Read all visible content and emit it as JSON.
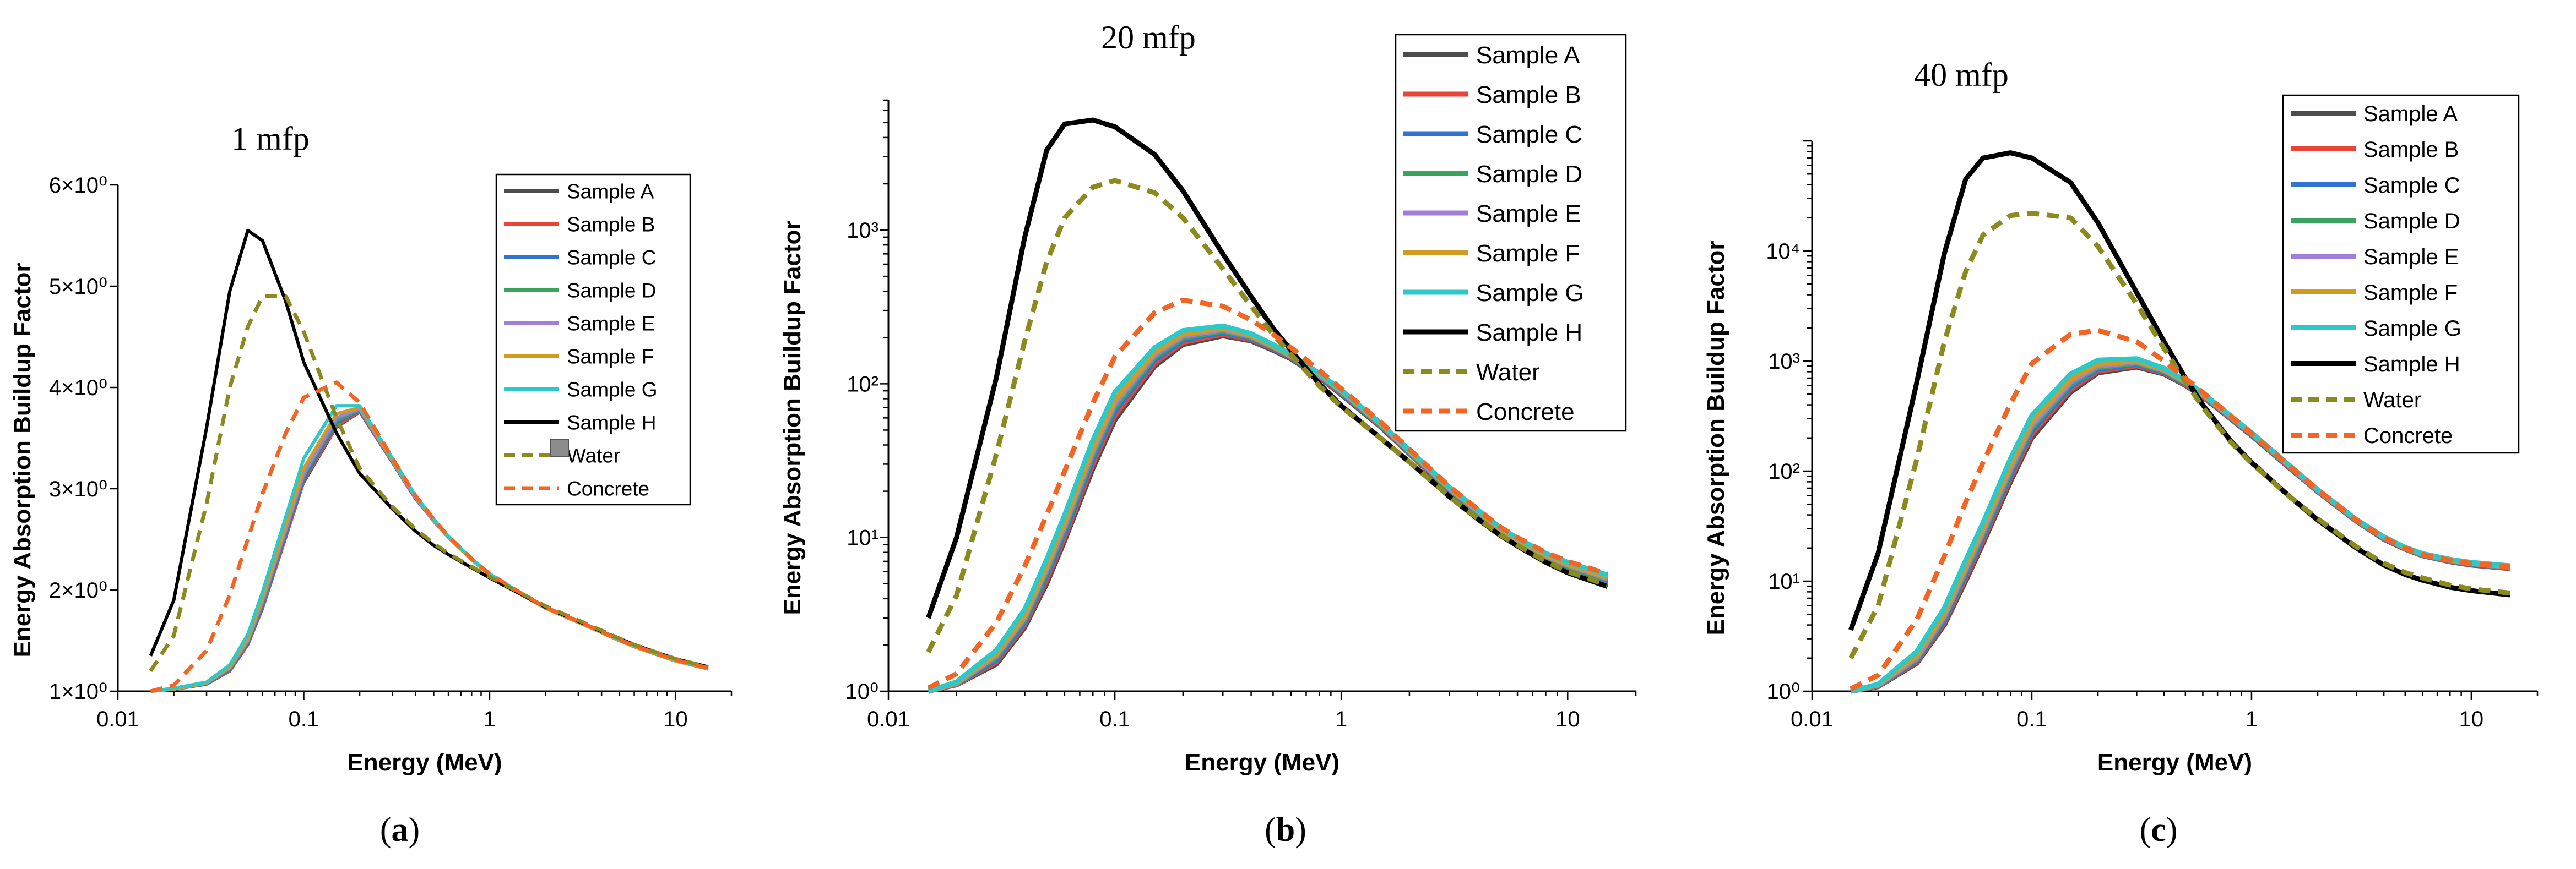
{
  "captions": [
    "(a)",
    "(b)",
    "(c)"
  ],
  "series_styles": [
    {
      "name": "Sample A",
      "color": "#4d4d4d",
      "dash": "solid"
    },
    {
      "name": "Sample B",
      "color": "#e8443a",
      "dash": "solid"
    },
    {
      "name": "Sample C",
      "color": "#2f74d0",
      "dash": "solid"
    },
    {
      "name": "Sample D",
      "color": "#3aa35e",
      "dash": "solid"
    },
    {
      "name": "Sample E",
      "color": "#a07fd8",
      "dash": "solid"
    },
    {
      "name": "Sample F",
      "color": "#d19a23",
      "dash": "solid"
    },
    {
      "name": "Sample G",
      "color": "#2ec8c8",
      "dash": "solid"
    },
    {
      "name": "Sample H",
      "color": "#000000",
      "dash": "solid"
    },
    {
      "name": "Water",
      "color": "#8a8a1e",
      "dash": "dashed"
    },
    {
      "name": "Concrete",
      "color": "#f26522",
      "dash": "dashed"
    }
  ],
  "chart_data": [
    {
      "type": "line",
      "title": "1 mfp",
      "caption": "(a)",
      "xlabel": "Energy (MeV)",
      "ylabel": "Energy Absorption Buildup Factor",
      "xscale": "log",
      "yscale": "linear",
      "xlim": [
        0.01,
        20
      ],
      "ylim": [
        1,
        6
      ],
      "x_ticks": [
        0.01,
        0.1,
        1,
        10
      ],
      "x_tick_labels": [
        "0.01",
        "0.1",
        "1",
        "10"
      ],
      "y_ticks": [
        1,
        2,
        3,
        4,
        5,
        6
      ],
      "y_tick_labels": [
        "1×10⁰",
        "2×10⁰",
        "3×10⁰",
        "4×10⁰",
        "5×10⁰",
        "6×10⁰"
      ],
      "legend_position": "top-right",
      "x": [
        0.015,
        0.02,
        0.03,
        0.04,
        0.05,
        0.06,
        0.08,
        0.1,
        0.15,
        0.2,
        0.3,
        0.4,
        0.5,
        0.6,
        0.8,
        1,
        1.5,
        2,
        3,
        4,
        5,
        6,
        8,
        10,
        15
      ],
      "series": [
        {
          "name": "Sample A",
          "values": [
            1.0,
            1.02,
            1.07,
            1.2,
            1.45,
            1.8,
            2.5,
            3.05,
            3.6,
            3.75,
            3.25,
            2.9,
            2.68,
            2.52,
            2.3,
            2.15,
            1.95,
            1.82,
            1.68,
            1.58,
            1.5,
            1.44,
            1.36,
            1.3,
            1.22
          ]
        },
        {
          "name": "Sample B",
          "values": [
            1.0,
            1.02,
            1.07,
            1.2,
            1.46,
            1.82,
            2.52,
            3.08,
            3.62,
            3.76,
            3.26,
            2.9,
            2.68,
            2.52,
            2.3,
            2.15,
            1.95,
            1.82,
            1.68,
            1.58,
            1.5,
            1.44,
            1.36,
            1.3,
            1.22
          ]
        },
        {
          "name": "Sample C",
          "values": [
            1.0,
            1.02,
            1.07,
            1.21,
            1.47,
            1.84,
            2.55,
            3.1,
            3.65,
            3.77,
            3.26,
            2.9,
            2.68,
            2.52,
            2.3,
            2.15,
            1.95,
            1.82,
            1.68,
            1.58,
            1.5,
            1.44,
            1.36,
            1.3,
            1.22
          ]
        },
        {
          "name": "Sample D",
          "values": [
            1.0,
            1.02,
            1.08,
            1.22,
            1.49,
            1.87,
            2.58,
            3.13,
            3.67,
            3.78,
            3.27,
            2.91,
            2.68,
            2.52,
            2.3,
            2.15,
            1.95,
            1.82,
            1.68,
            1.58,
            1.5,
            1.44,
            1.36,
            1.3,
            1.22
          ]
        },
        {
          "name": "Sample E",
          "values": [
            1.0,
            1.02,
            1.08,
            1.23,
            1.5,
            1.89,
            2.6,
            3.15,
            3.7,
            3.79,
            3.27,
            2.91,
            2.68,
            2.52,
            2.3,
            2.15,
            1.95,
            1.82,
            1.68,
            1.58,
            1.5,
            1.44,
            1.36,
            1.3,
            1.22
          ]
        },
        {
          "name": "Sample F",
          "values": [
            1.0,
            1.02,
            1.08,
            1.24,
            1.52,
            1.92,
            2.64,
            3.2,
            3.74,
            3.8,
            3.28,
            2.92,
            2.69,
            2.52,
            2.3,
            2.15,
            1.95,
            1.82,
            1.68,
            1.58,
            1.5,
            1.44,
            1.36,
            1.3,
            1.22
          ]
        },
        {
          "name": "Sample G",
          "values": [
            1.0,
            1.03,
            1.09,
            1.26,
            1.56,
            1.98,
            2.72,
            3.3,
            3.82,
            3.82,
            3.3,
            2.93,
            2.7,
            2.53,
            2.31,
            2.16,
            1.96,
            1.83,
            1.69,
            1.59,
            1.51,
            1.45,
            1.37,
            1.31,
            1.23
          ]
        },
        {
          "name": "Sample H",
          "values": [
            1.35,
            1.9,
            3.6,
            4.95,
            5.55,
            5.45,
            4.85,
            4.25,
            3.55,
            3.15,
            2.8,
            2.58,
            2.44,
            2.35,
            2.22,
            2.12,
            1.95,
            1.83,
            1.69,
            1.59,
            1.52,
            1.46,
            1.38,
            1.32,
            1.24
          ]
        },
        {
          "name": "Water",
          "values": [
            1.2,
            1.55,
            2.85,
            4.0,
            4.6,
            4.9,
            4.9,
            4.55,
            3.7,
            3.2,
            2.82,
            2.6,
            2.46,
            2.36,
            2.23,
            2.13,
            1.96,
            1.84,
            1.7,
            1.6,
            1.52,
            1.46,
            1.38,
            1.32,
            1.24
          ]
        },
        {
          "name": "Concrete",
          "values": [
            1.0,
            1.06,
            1.4,
            1.95,
            2.5,
            2.95,
            3.55,
            3.9,
            4.05,
            3.85,
            3.3,
            2.93,
            2.7,
            2.53,
            2.31,
            2.16,
            1.96,
            1.83,
            1.69,
            1.59,
            1.51,
            1.45,
            1.37,
            1.31,
            1.23
          ]
        }
      ]
    },
    {
      "type": "line",
      "title": "20 mfp",
      "caption": "(b)",
      "xlabel": "Energy (MeV)",
      "ylabel": "Energy Absorption Buildup Factor",
      "xscale": "log",
      "yscale": "log",
      "xlim": [
        0.01,
        20
      ],
      "ylim": [
        1,
        7000
      ],
      "x_ticks": [
        0.01,
        0.1,
        1,
        10
      ],
      "x_tick_labels": [
        "0.01",
        "0.1",
        "1",
        "10"
      ],
      "y_ticks": [
        1,
        10,
        100,
        1000
      ],
      "y_tick_labels": [
        "10⁰",
        "10¹",
        "10²",
        "10³"
      ],
      "legend_position": "top-right",
      "x": [
        0.015,
        0.02,
        0.03,
        0.04,
        0.05,
        0.06,
        0.08,
        0.1,
        0.15,
        0.2,
        0.3,
        0.4,
        0.5,
        0.6,
        0.8,
        1,
        1.5,
        2,
        3,
        4,
        5,
        6,
        8,
        10,
        15
      ],
      "series": [
        {
          "name": "Sample A",
          "values": [
            1.0,
            1.1,
            1.5,
            2.6,
            5.0,
            9.5,
            28,
            58,
            130,
            180,
            205,
            190,
            165,
            145,
            110,
            85,
            52,
            35,
            20,
            14,
            11,
            9.2,
            7.2,
            6.2,
            5.0
          ]
        },
        {
          "name": "Sample B",
          "values": [
            1.0,
            1.1,
            1.55,
            2.7,
            5.3,
            10,
            30,
            62,
            136,
            186,
            210,
            194,
            168,
            147,
            111,
            86,
            52.5,
            35.3,
            20.2,
            14.2,
            11.1,
            9.3,
            7.3,
            6.3,
            5.1
          ]
        },
        {
          "name": "Sample C",
          "values": [
            1.0,
            1.11,
            1.6,
            2.8,
            5.6,
            10.6,
            32,
            66,
            142,
            192,
            215,
            197,
            170,
            148,
            112,
            87,
            53,
            35.6,
            20.4,
            14.4,
            11.2,
            9.4,
            7.4,
            6.4,
            5.2
          ]
        },
        {
          "name": "Sample D",
          "values": [
            1.0,
            1.12,
            1.65,
            2.9,
            5.9,
            11.2,
            34,
            70,
            148,
            198,
            220,
            200,
            172,
            150,
            113,
            88,
            53.5,
            35.9,
            20.6,
            14.6,
            11.3,
            9.5,
            7.5,
            6.5,
            5.3
          ]
        },
        {
          "name": "Sample E",
          "values": [
            1.0,
            1.12,
            1.7,
            3.0,
            6.2,
            11.8,
            36,
            74,
            154,
            204,
            225,
            203,
            174,
            151,
            114,
            89,
            54,
            36.2,
            20.8,
            14.8,
            11.4,
            9.6,
            7.6,
            6.6,
            5.4
          ]
        },
        {
          "name": "Sample F",
          "values": [
            1.0,
            1.13,
            1.75,
            3.1,
            6.5,
            12.5,
            38,
            78,
            160,
            210,
            230,
            206,
            176,
            152,
            115,
            90,
            54.5,
            36.5,
            21,
            15,
            11.5,
            9.7,
            7.7,
            6.7,
            5.5
          ]
        },
        {
          "name": "Sample G",
          "values": [
            1.0,
            1.15,
            1.85,
            3.4,
            7.2,
            14,
            43,
            88,
            172,
            222,
            238,
            212,
            180,
            155,
            117,
            91,
            55,
            37,
            21.3,
            15.2,
            11.7,
            9.9,
            7.9,
            6.9,
            5.7
          ]
        },
        {
          "name": "Sample H",
          "values": [
            3.0,
            10,
            110,
            900,
            3300,
            4900,
            5200,
            4700,
            3100,
            1800,
            700,
            370,
            230,
            165,
            100,
            72,
            44,
            31,
            18.5,
            13.2,
            10.4,
            8.8,
            6.9,
            5.9,
            4.8
          ]
        },
        {
          "name": "Water",
          "values": [
            1.8,
            4.2,
            35,
            190,
            620,
            1200,
            1900,
            2100,
            1750,
            1200,
            560,
            320,
            210,
            155,
            97,
            71,
            44,
            31,
            18.5,
            13.3,
            10.5,
            8.9,
            7.0,
            6.0,
            4.9
          ]
        },
        {
          "name": "Concrete",
          "values": [
            1.05,
            1.3,
            2.8,
            6.5,
            14,
            27,
            75,
            150,
            290,
            350,
            320,
            260,
            210,
            172,
            122,
            93,
            56,
            37.5,
            21.5,
            15.3,
            11.8,
            10.0,
            8.0,
            7.0,
            5.8
          ]
        }
      ]
    },
    {
      "type": "line",
      "title": "40 mfp",
      "caption": "(c)",
      "xlabel": "Energy (MeV)",
      "ylabel": "Energy Absorption Buildup Factor",
      "xscale": "log",
      "yscale": "log",
      "xlim": [
        0.01,
        20
      ],
      "ylim": [
        1,
        100000
      ],
      "x_ticks": [
        0.01,
        0.1,
        1,
        10
      ],
      "x_tick_labels": [
        "0.01",
        "0.1",
        "1",
        "10"
      ],
      "y_ticks": [
        1,
        10,
        100,
        1000,
        10000
      ],
      "y_tick_labels": [
        "10⁰",
        "10¹",
        "10²",
        "10³",
        "10⁴"
      ],
      "legend_position": "top-right",
      "x": [
        0.015,
        0.02,
        0.03,
        0.04,
        0.05,
        0.06,
        0.08,
        0.1,
        0.15,
        0.2,
        0.3,
        0.4,
        0.5,
        0.6,
        0.8,
        1,
        1.5,
        2,
        3,
        4,
        5,
        6,
        8,
        10,
        15
      ],
      "series": [
        {
          "name": "Sample A",
          "values": [
            1.0,
            1.1,
            1.8,
            4.0,
            10,
            22,
            80,
            200,
            520,
            780,
            880,
            760,
            600,
            470,
            300,
            210,
            105,
            65,
            35,
            24,
            19.5,
            17,
            15,
            14,
            13
          ]
        },
        {
          "name": "Sample B",
          "values": [
            1.0,
            1.11,
            1.85,
            4.2,
            10.7,
            23.5,
            86,
            215,
            550,
            810,
            905,
            775,
            610,
            476,
            303,
            212,
            106,
            65.5,
            35.2,
            24.2,
            19.6,
            17.1,
            15.1,
            14.1,
            13.1
          ]
        },
        {
          "name": "Sample C",
          "values": [
            1.0,
            1.12,
            1.9,
            4.4,
            11.4,
            25,
            92,
            230,
            580,
            840,
            930,
            790,
            620,
            482,
            306,
            214,
            107,
            66,
            35.4,
            24.4,
            19.7,
            17.2,
            15.2,
            14.2,
            13.2
          ]
        },
        {
          "name": "Sample D",
          "values": [
            1.0,
            1.13,
            1.95,
            4.6,
            12.1,
            26.5,
            98,
            245,
            610,
            870,
            955,
            805,
            630,
            488,
            309,
            216,
            108,
            66.5,
            35.6,
            24.6,
            19.8,
            17.3,
            15.3,
            14.3,
            13.3
          ]
        },
        {
          "name": "Sample E",
          "values": [
            1.0,
            1.13,
            2.0,
            4.8,
            12.8,
            28,
            104,
            260,
            640,
            900,
            980,
            820,
            640,
            494,
            312,
            218,
            109,
            67,
            35.8,
            24.8,
            19.9,
            17.4,
            15.4,
            14.4,
            13.4
          ]
        },
        {
          "name": "Sample F",
          "values": [
            1.0,
            1.14,
            2.1,
            5.1,
            13.7,
            30,
            112,
            280,
            680,
            940,
            1000,
            835,
            650,
            500,
            315,
            220,
            110,
            67.5,
            36,
            25,
            20,
            17.5,
            15.5,
            14.5,
            13.5
          ]
        },
        {
          "name": "Sample G",
          "values": [
            1.0,
            1.16,
            2.3,
            5.7,
            15.5,
            34,
            130,
            320,
            760,
            1020,
            1050,
            860,
            665,
            510,
            320,
            223,
            111,
            68,
            36.3,
            25.3,
            20.3,
            17.8,
            15.8,
            14.8,
            13.8
          ]
        },
        {
          "name": "Sample H",
          "values": [
            3.6,
            18,
            650,
            9500,
            45000,
            70000,
            78000,
            70000,
            42000,
            18000,
            4200,
            1500,
            700,
            400,
            190,
            120,
            58,
            36,
            20,
            14,
            11.5,
            10.2,
            8.8,
            8.2,
            7.5
          ]
        },
        {
          "name": "Water",
          "values": [
            2.0,
            6.0,
            130,
            1500,
            6500,
            14000,
            21000,
            22000,
            20000,
            11000,
            3300,
            1300,
            650,
            380,
            185,
            118,
            58,
            37,
            20.5,
            14.5,
            12,
            10.7,
            9.2,
            8.5,
            7.8
          ]
        },
        {
          "name": "Concrete",
          "values": [
            1.05,
            1.4,
            4.5,
            17,
            52,
            120,
            410,
            950,
            1750,
            1900,
            1500,
            1000,
            700,
            520,
            320,
            220,
            110,
            68,
            36,
            25,
            20,
            17.5,
            15.5,
            14.5,
            13.5
          ]
        }
      ]
    }
  ]
}
